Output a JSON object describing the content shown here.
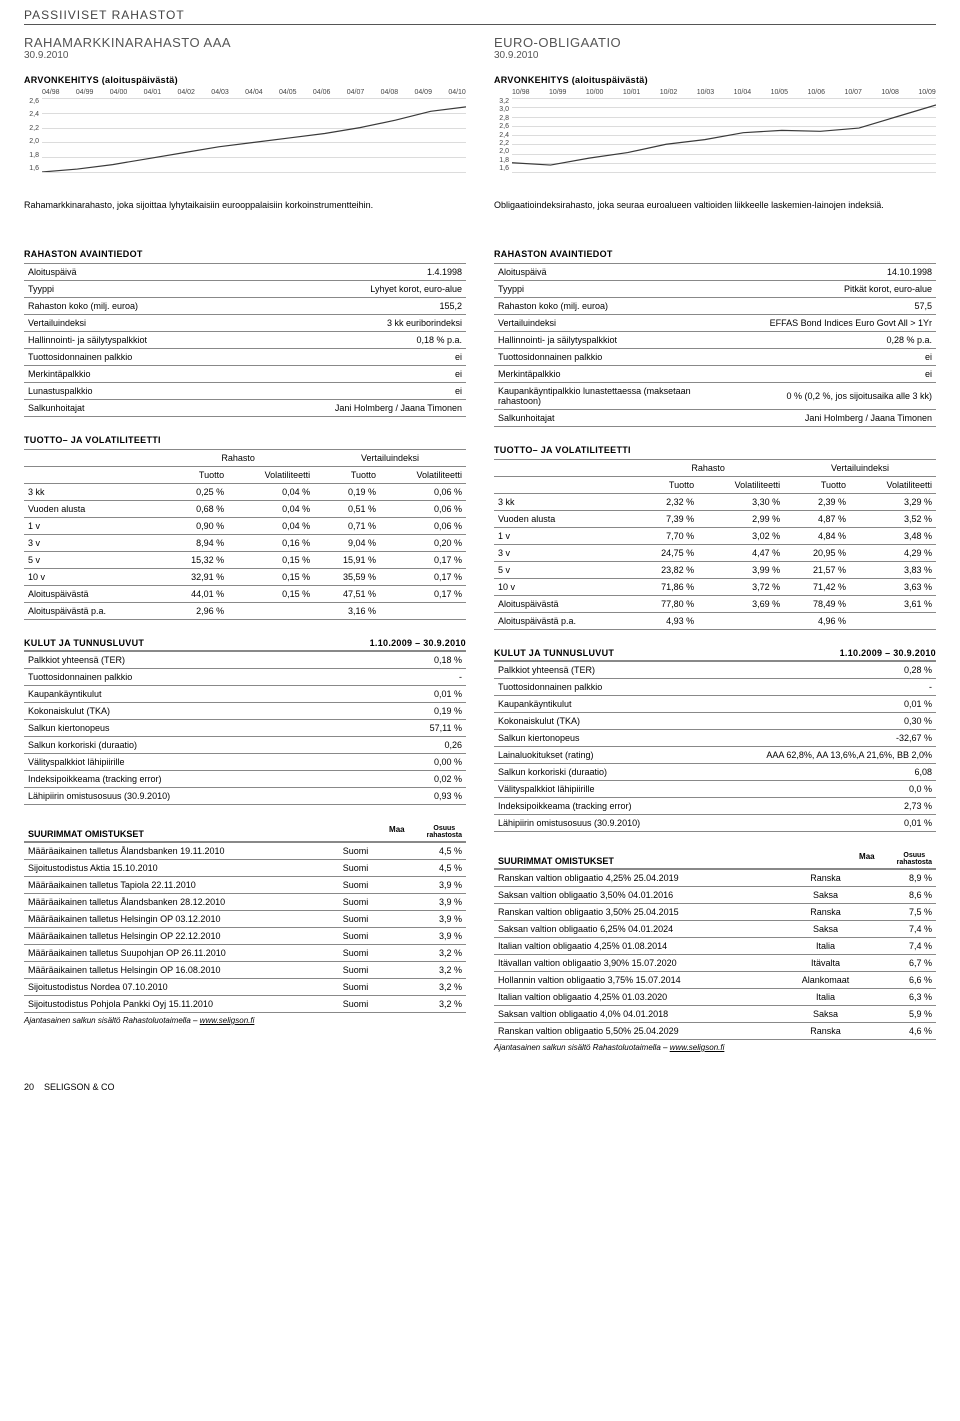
{
  "category_title": "PASSIIVISET RAHASTOT",
  "footer": {
    "page": "20",
    "brand": "SELIGSON & CO"
  },
  "left": {
    "fund_title": "RAHAMARKKINARAHASTO AAA",
    "fund_date": "30.9.2010",
    "arvonkehitys_label": "ARVONKEHITYS (aloituspäivästä)",
    "chart": {
      "x_labels": [
        "04/98",
        "04/99",
        "04/00",
        "04/01",
        "04/02",
        "04/03",
        "04/04",
        "04/05",
        "04/06",
        "04/07",
        "04/08",
        "04/09",
        "04/10"
      ],
      "y_labels": [
        "2,6",
        "2,4",
        "2,2",
        "2,0",
        "1,8",
        "1,6"
      ],
      "y_min": 1.6,
      "y_max": 2.6,
      "line_color": "#3a3a3a",
      "grid_color": "#dcdcdc",
      "series": [
        {
          "x": 0,
          "y": 1.6
        },
        {
          "x": 1,
          "y": 1.64
        },
        {
          "x": 2,
          "y": 1.7
        },
        {
          "x": 3,
          "y": 1.78
        },
        {
          "x": 4,
          "y": 1.86
        },
        {
          "x": 5,
          "y": 1.94
        },
        {
          "x": 6,
          "y": 2.0
        },
        {
          "x": 7,
          "y": 2.06
        },
        {
          "x": 8,
          "y": 2.12
        },
        {
          "x": 9,
          "y": 2.2
        },
        {
          "x": 10,
          "y": 2.3
        },
        {
          "x": 11,
          "y": 2.42
        },
        {
          "x": 12,
          "y": 2.48
        }
      ]
    },
    "description": "Rahamarkkinarahasto, joka sijoittaa lyhytaikaisiin eurooppalaisiin korkoinstrumentteihin.",
    "avaintiedot_label": "RAHASTON AVAINTIEDOT",
    "avaintiedot": [
      [
        "Aloituspäivä",
        "1.4.1998"
      ],
      [
        "Tyyppi",
        "Lyhyet korot, euro-alue"
      ],
      [
        "Rahaston koko (milj. euroa)",
        "155,2"
      ],
      [
        "Vertailuindeksi",
        "3 kk euriborindeksi"
      ],
      [
        "Hallinnointi- ja säilytyspalkkiot",
        "0,18 % p.a."
      ],
      [
        "Tuottosidonnainen palkkio",
        "ei"
      ],
      [
        "Merkintäpalkkio",
        "ei"
      ],
      [
        "Lunastuspalkkio",
        "ei"
      ],
      [
        "Salkunhoitajat",
        "Jani Holmberg / Jaana Timonen"
      ]
    ],
    "perf_label": "TUOTTO– JA VOLATILITEETTI",
    "perf_heads": {
      "rahasto": "Rahasto",
      "vertailu": "Vertailuindeksi",
      "tuotto": "Tuotto",
      "vol": "Volatiliteetti"
    },
    "perf": [
      [
        "3 kk",
        "0,25 %",
        "0,04 %",
        "0,19 %",
        "0,06 %"
      ],
      [
        "Vuoden alusta",
        "0,68 %",
        "0,04 %",
        "0,51 %",
        "0,06 %"
      ],
      [
        "1 v",
        "0,90 %",
        "0,04 %",
        "0,71 %",
        "0,06 %"
      ],
      [
        "3 v",
        "8,94 %",
        "0,16 %",
        "9,04 %",
        "0,20 %"
      ],
      [
        "5 v",
        "15,32 %",
        "0,15 %",
        "15,91 %",
        "0,17 %"
      ],
      [
        "10 v",
        "32,91 %",
        "0,15 %",
        "35,59 %",
        "0,17 %"
      ],
      [
        "Aloituspäivästä",
        "44,01 %",
        "0,15 %",
        "47,51 %",
        "0,17 %"
      ],
      [
        "Aloituspäivästä p.a.",
        "2,96 %",
        "",
        "3,16 %",
        ""
      ]
    ],
    "kulut_label": "KULUT JA TUNNUSLUVUT",
    "kulut_period": "1.10.2009 – 30.9.2010",
    "kulut": [
      [
        "Palkkiot yhteensä (TER)",
        "0,18 %"
      ],
      [
        "Tuottosidonnainen palkkio",
        "-"
      ],
      [
        "Kaupankäyntikulut",
        "0,01 %"
      ],
      [
        "Kokonaiskulut (TKA)",
        "0,19 %"
      ],
      [
        "Salkun kiertonopeus",
        "57,11 %"
      ],
      [
        "Salkun korkoriski (duraatio)",
        "0,26"
      ],
      [
        "Välityspalkkiot lähipiirille",
        "0,00 %"
      ],
      [
        "Indeksipoikkeama (tracking error)",
        "0,02 %"
      ],
      [
        "Lähipiirin omistusosuus (30.9.2010)",
        "0,93 %"
      ]
    ],
    "holdings_label": "SUURIMMAT OMISTUKSET",
    "holdings_heads": {
      "maa": "Maa",
      "osuus_l1": "Osuus",
      "osuus_l2": "rahastosta"
    },
    "holdings": [
      [
        "Määräaikainen talletus Ålandsbanken 19.11.2010",
        "Suomi",
        "4,5 %"
      ],
      [
        "Sijoitustodistus Aktia 15.10.2010",
        "Suomi",
        "4,5 %"
      ],
      [
        "Määräaikainen talletus Tapiola 22.11.2010",
        "Suomi",
        "3,9 %"
      ],
      [
        "Määräaikainen talletus Ålandsbanken 28.12.2010",
        "Suomi",
        "3,9 %"
      ],
      [
        "Määräaikainen talletus Helsingin OP 03.12.2010",
        "Suomi",
        "3,9 %"
      ],
      [
        "Määräaikainen talletus Helsingin OP 22.12.2010",
        "Suomi",
        "3,9 %"
      ],
      [
        "Määräaikainen talletus Suupohjan OP 26.11.2010",
        "Suomi",
        "3,2 %"
      ],
      [
        "Määräaikainen talletus Helsingin OP 16.08.2010",
        "Suomi",
        "3,2 %"
      ],
      [
        "Sijoitustodistus Nordea 07.10.2010",
        "Suomi",
        "3,2 %"
      ],
      [
        "Sijoitustodistus Pohjola Pankki Oyj 15.11.2010",
        "Suomi",
        "3,2 %"
      ]
    ],
    "footnote_text": "Ajantasainen salkun sisältö Rahastoluotaimella – ",
    "footnote_link": "www.seligson.fi"
  },
  "right": {
    "fund_title": "EURO-OBLIGAATIO",
    "fund_date": "30.9.2010",
    "arvonkehitys_label": "ARVONKEHITYS (aloituspäivästä)",
    "chart": {
      "x_labels": [
        "10/98",
        "10/99",
        "10/00",
        "10/01",
        "10/02",
        "10/03",
        "10/04",
        "10/05",
        "10/06",
        "10/07",
        "10/08",
        "10/09"
      ],
      "y_labels": [
        "3,2",
        "3,0",
        "2,8",
        "2,6",
        "2,4",
        "2,2",
        "2,0",
        "1,8",
        "1,6"
      ],
      "y_min": 1.6,
      "y_max": 3.2,
      "line_color": "#3a3a3a",
      "grid_color": "#dcdcdc",
      "series": [
        {
          "x": 0,
          "y": 1.8
        },
        {
          "x": 1,
          "y": 1.75
        },
        {
          "x": 2,
          "y": 1.9
        },
        {
          "x": 3,
          "y": 2.02
        },
        {
          "x": 4,
          "y": 2.2
        },
        {
          "x": 5,
          "y": 2.3
        },
        {
          "x": 6,
          "y": 2.45
        },
        {
          "x": 7,
          "y": 2.5
        },
        {
          "x": 8,
          "y": 2.48
        },
        {
          "x": 9,
          "y": 2.55
        },
        {
          "x": 10,
          "y": 2.8
        },
        {
          "x": 11,
          "y": 3.05
        }
      ]
    },
    "description": "Obligaatioindeksirahasto, joka seuraa euroalueen valtioiden liikkeelle laskemien-lainojen indeksiä.",
    "avaintiedot_label": "RAHASTON AVAINTIEDOT",
    "avaintiedot": [
      [
        "Aloituspäivä",
        "14.10.1998"
      ],
      [
        "Tyyppi",
        "Pitkät korot, euro-alue"
      ],
      [
        "Rahaston koko (milj. euroa)",
        "57,5"
      ],
      [
        "Vertailuindeksi",
        "EFFAS Bond Indices Euro Govt All > 1Yr"
      ],
      [
        "Hallinnointi- ja säilytyspalkkiot",
        "0,28 % p.a."
      ],
      [
        "Tuottosidonnainen palkkio",
        "ei"
      ],
      [
        "Merkintäpalkkio",
        "ei"
      ],
      [
        "Kaupankäyntipalkkio lunastettaessa (maksetaan rahastoon)",
        "0 % (0,2 %, jos sijoitusaika alle 3 kk)"
      ],
      [
        "Salkunhoitajat",
        "Jani Holmberg / Jaana Timonen"
      ]
    ],
    "perf_label": "TUOTTO– JA VOLATILITEETTI",
    "perf_heads": {
      "rahasto": "Rahasto",
      "vertailu": "Vertailuindeksi",
      "tuotto": "Tuotto",
      "vol": "Volatiliteetti"
    },
    "perf": [
      [
        "3 kk",
        "2,32 %",
        "3,30 %",
        "2,39 %",
        "3,29 %"
      ],
      [
        "Vuoden alusta",
        "7,39 %",
        "2,99 %",
        "4,87 %",
        "3,52 %"
      ],
      [
        "1 v",
        "7,70 %",
        "3,02 %",
        "4,84 %",
        "3,48 %"
      ],
      [
        "3 v",
        "24,75 %",
        "4,47 %",
        "20,95 %",
        "4,29 %"
      ],
      [
        "5 v",
        "23,82 %",
        "3,99 %",
        "21,57 %",
        "3,83 %"
      ],
      [
        "10 v",
        "71,86 %",
        "3,72 %",
        "71,42 %",
        "3,63 %"
      ],
      [
        "Aloituspäivästä",
        "77,80 %",
        "3,69 %",
        "78,49 %",
        "3,61 %"
      ],
      [
        "Aloituspäivästä p.a.",
        "4,93 %",
        "",
        "4,96 %",
        ""
      ]
    ],
    "kulut_label": "KULUT JA TUNNUSLUVUT",
    "kulut_period": "1.10.2009 – 30.9.2010",
    "kulut": [
      [
        "Palkkiot yhteensä (TER)",
        "0,28 %"
      ],
      [
        "Tuottosidonnainen palkkio",
        "-"
      ],
      [
        "Kaupankäyntikulut",
        "0,01 %"
      ],
      [
        "Kokonaiskulut (TKA)",
        "0,30 %"
      ],
      [
        "Salkun kiertonopeus",
        "-32,67 %"
      ],
      [
        "Lainaluokitukset (rating)",
        "AAA 62,8%, AA 13,6%,A 21,6%, BB 2,0%"
      ],
      [
        "Salkun korkoriski (duraatio)",
        "6,08"
      ],
      [
        "Välityspalkkiot lähipiirille",
        "0,0 %"
      ],
      [
        "Indeksipoikkeama (tracking error)",
        "2,73 %"
      ],
      [
        "Lähipiirin omistusosuus (30.9.2010)",
        "0,01 %"
      ]
    ],
    "holdings_label": "SUURIMMAT OMISTUKSET",
    "holdings_heads": {
      "maa": "Maa",
      "osuus_l1": "Osuus",
      "osuus_l2": "rahastosta"
    },
    "holdings": [
      [
        "Ranskan valtion obligaatio 4,25% 25.04.2019",
        "Ranska",
        "8,9 %"
      ],
      [
        "Saksan valtion obligaatio 3,50% 04.01.2016",
        "Saksa",
        "8,6 %"
      ],
      [
        "Ranskan valtion obligaatio 3,50% 25.04.2015",
        "Ranska",
        "7,5 %"
      ],
      [
        "Saksan valtion obligaatio 6,25% 04.01.2024",
        "Saksa",
        "7,4 %"
      ],
      [
        "Italian valtion obligaatio 4,25% 01.08.2014",
        "Italia",
        "7,4 %"
      ],
      [
        "Itävallan valtion obligaatio 3,90% 15.07.2020",
        "Itävalta",
        "6,7 %"
      ],
      [
        "Hollannin valtion obligaatio 3,75% 15.07.2014",
        "Alankomaat",
        "6,6 %"
      ],
      [
        "Italian valtion obligaatio 4,25% 01.03.2020",
        "Italia",
        "6,3 %"
      ],
      [
        "Saksan valtion obligaatio 4,0% 04.01.2018",
        "Saksa",
        "5,9 %"
      ],
      [
        "Ranskan valtion obligaatio 5,50% 25.04.2029",
        "Ranska",
        "4,6 %"
      ]
    ],
    "footnote_text": "Ajantasainen salkun sisältö Rahastoluotaimella – ",
    "footnote_link": "www.seligson.fi"
  }
}
